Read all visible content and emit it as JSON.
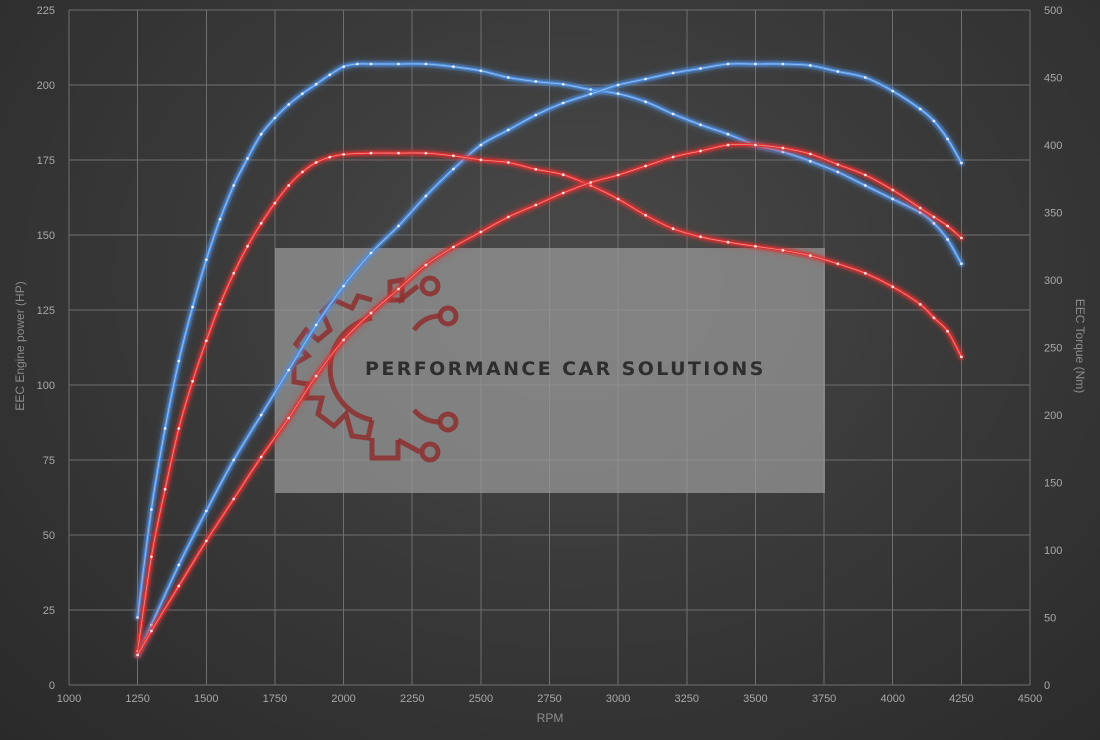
{
  "watermark": {
    "brand_text": "PERFORMANCE CAR SOLUTIONS",
    "logo_icon": "gear-circuit-logo-icon",
    "box_color": "#9a9a9a",
    "logo_color": "#8e2f2f"
  },
  "chart_data": {
    "type": "line",
    "xlabel": "RPM",
    "ylabel_left": "EEC Engine power (HP)",
    "ylabel_right": "EEC Torque (Nm)",
    "xlim": [
      1000,
      4500
    ],
    "ylim_left": [
      0,
      225
    ],
    "ylim_right": [
      0,
      500
    ],
    "x_ticks": [
      "1000",
      "1250",
      "1500",
      "1750",
      "2000",
      "2250",
      "2500",
      "2750",
      "3000",
      "3250",
      "3500",
      "3750",
      "4000",
      "4250",
      "4500"
    ],
    "y_left_ticks": [
      "0",
      "25",
      "50",
      "75",
      "100",
      "125",
      "150",
      "175",
      "200",
      "225"
    ],
    "y_right_ticks": [
      "0",
      "50",
      "100",
      "150",
      "200",
      "250",
      "300",
      "350",
      "400",
      "450",
      "500"
    ],
    "grid": true,
    "legend": "none",
    "colors": {
      "tuned": "#4f8fe0",
      "stock": "#e03030"
    },
    "series": [
      {
        "axis": "right",
        "color": "#4f8fe0",
        "x": [
          1250,
          1300,
          1350,
          1400,
          1450,
          1500,
          1550,
          1600,
          1650,
          1700,
          1750,
          1800,
          1850,
          1900,
          1950,
          2000,
          2050,
          2100,
          2200,
          2300,
          2400,
          2500,
          2600,
          2700,
          2800,
          2900,
          3000,
          3100,
          3200,
          3300,
          3400,
          3500,
          3600,
          3700,
          3800,
          3900,
          4000,
          4100,
          4150,
          4200,
          4250
        ],
        "y": [
          50,
          130,
          190,
          240,
          280,
          315,
          345,
          370,
          390,
          408,
          420,
          430,
          438,
          445,
          452,
          458,
          460,
          460,
          460,
          460,
          458,
          455,
          450,
          447,
          445,
          441,
          438,
          432,
          423,
          415,
          408,
          400,
          395,
          388,
          380,
          370,
          360,
          350,
          342,
          330,
          312
        ]
      },
      {
        "axis": "left",
        "color": "#4f8fe0",
        "x": [
          1250,
          1300,
          1400,
          1500,
          1600,
          1700,
          1800,
          1900,
          2000,
          2100,
          2200,
          2300,
          2400,
          2500,
          2600,
          2700,
          2800,
          2900,
          3000,
          3100,
          3200,
          3300,
          3400,
          3500,
          3600,
          3700,
          3800,
          3900,
          4000,
          4100,
          4150,
          4200,
          4250
        ],
        "y": [
          10,
          20,
          40,
          58,
          75,
          90,
          105,
          120,
          133,
          144,
          153,
          163,
          172,
          180,
          185,
          190,
          194,
          197,
          200,
          202,
          204,
          205.5,
          207,
          207,
          207,
          206.5,
          204.5,
          202.5,
          198,
          192,
          188,
          182,
          174
        ]
      },
      {
        "axis": "right",
        "color": "#e03030",
        "x": [
          1250,
          1300,
          1350,
          1400,
          1450,
          1500,
          1550,
          1600,
          1650,
          1700,
          1750,
          1800,
          1850,
          1900,
          1950,
          2000,
          2100,
          2200,
          2300,
          2400,
          2500,
          2600,
          2700,
          2800,
          2900,
          3000,
          3100,
          3200,
          3300,
          3400,
          3500,
          3600,
          3700,
          3800,
          3900,
          4000,
          4100,
          4150,
          4200,
          4250
        ],
        "y": [
          25,
          95,
          145,
          190,
          225,
          255,
          282,
          305,
          325,
          342,
          357,
          370,
          380,
          387,
          391,
          393,
          394,
          394,
          394,
          392,
          389,
          387,
          382,
          378,
          370,
          360,
          348,
          338,
          332,
          328,
          325,
          322,
          318,
          312,
          305,
          295,
          282,
          272,
          262,
          243
        ]
      },
      {
        "axis": "left",
        "color": "#e03030",
        "x": [
          1250,
          1300,
          1400,
          1500,
          1600,
          1700,
          1800,
          1900,
          2000,
          2100,
          2200,
          2300,
          2400,
          2500,
          2600,
          2700,
          2800,
          2900,
          3000,
          3100,
          3200,
          3300,
          3400,
          3500,
          3600,
          3700,
          3800,
          3900,
          4000,
          4100,
          4150,
          4200,
          4250
        ],
        "y": [
          10,
          18,
          33,
          48,
          62,
          76,
          89,
          103,
          115,
          124,
          132,
          140,
          146,
          151,
          156,
          160,
          164,
          167.5,
          170,
          173,
          176,
          178,
          180,
          180,
          179,
          177,
          173.5,
          170,
          165,
          159,
          156,
          153,
          149
        ]
      }
    ]
  }
}
